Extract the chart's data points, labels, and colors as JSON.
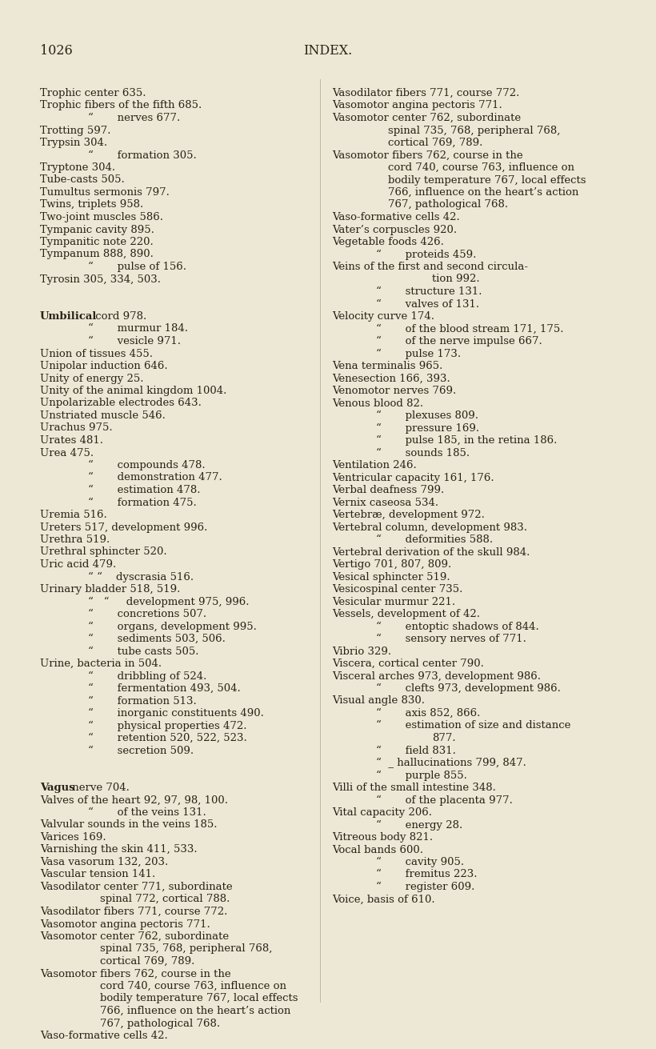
{
  "background_color": "#ede8d5",
  "page_number": "1026",
  "header": "INDEX.",
  "text_color": "#2a2218",
  "font_size": 9.5,
  "header_font_size": 11.5,
  "page_num_font_size": 11.5,
  "left_lines": [
    {
      "text": "Trophic center 635.",
      "indent": 0,
      "bold_prefix": ""
    },
    {
      "text": "Trophic fibers of the fifth 685.",
      "indent": 0,
      "bold_prefix": ""
    },
    {
      "text": "“       nerves 677.",
      "indent": 1,
      "bold_prefix": ""
    },
    {
      "text": "Trotting 597.",
      "indent": 0,
      "bold_prefix": ""
    },
    {
      "text": "Trypsin 304.",
      "indent": 0,
      "bold_prefix": ""
    },
    {
      "text": "“       formation 305.",
      "indent": 1,
      "bold_prefix": ""
    },
    {
      "text": "Tryptone 304.",
      "indent": 0,
      "bold_prefix": ""
    },
    {
      "text": "Tube-casts 505.",
      "indent": 0,
      "bold_prefix": ""
    },
    {
      "text": "Tumultus sermonis 797.",
      "indent": 0,
      "bold_prefix": ""
    },
    {
      "text": "Twins, triplets 958.",
      "indent": 0,
      "bold_prefix": ""
    },
    {
      "text": "Two-joint muscles 586.",
      "indent": 0,
      "bold_prefix": ""
    },
    {
      "text": "Tympanic cavity 895.",
      "indent": 0,
      "bold_prefix": ""
    },
    {
      "text": "Tympanitic note 220.",
      "indent": 0,
      "bold_prefix": ""
    },
    {
      "text": "Tympanum 888, 890.",
      "indent": 0,
      "bold_prefix": ""
    },
    {
      "text": "“       pulse of 156.",
      "indent": 1,
      "bold_prefix": ""
    },
    {
      "text": "Tyrosin 305, 334, 503.",
      "indent": 0,
      "bold_prefix": ""
    },
    {
      "text": "",
      "indent": 0,
      "bold_prefix": ""
    },
    {
      "text": "",
      "indent": 0,
      "bold_prefix": ""
    },
    {
      "text": "cord 978.",
      "indent": 0,
      "bold_prefix": "Umbilical"
    },
    {
      "text": "“       murmur 184.",
      "indent": 1,
      "bold_prefix": ""
    },
    {
      "text": "“       vesicle 971.",
      "indent": 1,
      "bold_prefix": ""
    },
    {
      "text": "Union of tissues 455.",
      "indent": 0,
      "bold_prefix": ""
    },
    {
      "text": "Unipolar induction 646.",
      "indent": 0,
      "bold_prefix": ""
    },
    {
      "text": "Unity of energy 25.",
      "indent": 0,
      "bold_prefix": ""
    },
    {
      "text": "Unity of the animal kingdom 1004.",
      "indent": 0,
      "bold_prefix": ""
    },
    {
      "text": "Unpolarizable electrodes 643.",
      "indent": 0,
      "bold_prefix": ""
    },
    {
      "text": "Unstriated muscle 546.",
      "indent": 0,
      "bold_prefix": ""
    },
    {
      "text": "Urachus 975.",
      "indent": 0,
      "bold_prefix": ""
    },
    {
      "text": "Urates 481.",
      "indent": 0,
      "bold_prefix": ""
    },
    {
      "text": "Urea 475.",
      "indent": 0,
      "bold_prefix": ""
    },
    {
      "text": "“       compounds 478.",
      "indent": 1,
      "bold_prefix": ""
    },
    {
      "text": "“       demonstration 477.",
      "indent": 1,
      "bold_prefix": ""
    },
    {
      "text": "“       estimation 478.",
      "indent": 1,
      "bold_prefix": ""
    },
    {
      "text": "“       formation 475.",
      "indent": 1,
      "bold_prefix": ""
    },
    {
      "text": "Uremia 516.",
      "indent": 0,
      "bold_prefix": ""
    },
    {
      "text": "Ureters 517, development 996.",
      "indent": 0,
      "bold_prefix": ""
    },
    {
      "text": "Urethra 519.",
      "indent": 0,
      "bold_prefix": ""
    },
    {
      "text": "Urethral sphincter 520.",
      "indent": 0,
      "bold_prefix": ""
    },
    {
      "text": "Uric acid 479.",
      "indent": 0,
      "bold_prefix": ""
    },
    {
      "text": "“ “    dyscrasia 516.",
      "indent": 1,
      "bold_prefix": ""
    },
    {
      "text": "Urinary bladder 518, 519.",
      "indent": 0,
      "bold_prefix": ""
    },
    {
      "text": "“   “     development 975, 996.",
      "indent": 1,
      "bold_prefix": ""
    },
    {
      "text": "“       concretions 507.",
      "indent": 1,
      "bold_prefix": ""
    },
    {
      "text": "“       organs, development 995.",
      "indent": 1,
      "bold_prefix": ""
    },
    {
      "text": "“       sediments 503, 506.",
      "indent": 1,
      "bold_prefix": ""
    },
    {
      "text": "“       tube casts 505.",
      "indent": 1,
      "bold_prefix": ""
    },
    {
      "text": "Urine, bacteria in 504.",
      "indent": 0,
      "bold_prefix": ""
    },
    {
      "text": "“       dribbling of 524.",
      "indent": 1,
      "bold_prefix": ""
    },
    {
      "text": "“       fermentation 493, 504.",
      "indent": 1,
      "bold_prefix": ""
    },
    {
      "text": "“       formation 513.",
      "indent": 1,
      "bold_prefix": ""
    },
    {
      "text": "“       inorganic constituents 490.",
      "indent": 1,
      "bold_prefix": ""
    },
    {
      "text": "“       physical properties 472.",
      "indent": 1,
      "bold_prefix": ""
    },
    {
      "text": "“       retention 520, 522, 523.",
      "indent": 1,
      "bold_prefix": ""
    },
    {
      "text": "“       secretion 509.",
      "indent": 1,
      "bold_prefix": ""
    },
    {
      "text": "",
      "indent": 0,
      "bold_prefix": ""
    },
    {
      "text": "",
      "indent": 0,
      "bold_prefix": ""
    },
    {
      "text": "nerve 704.",
      "indent": 0,
      "bold_prefix": "Vagus"
    },
    {
      "text": "Valves of the heart 92, 97, 98, 100.",
      "indent": 0,
      "bold_prefix": ""
    },
    {
      "text": "“       of the veins 131.",
      "indent": 1,
      "bold_prefix": ""
    },
    {
      "text": "Valvular sounds in the veins 185.",
      "indent": 0,
      "bold_prefix": ""
    },
    {
      "text": "Varices 169.",
      "indent": 0,
      "bold_prefix": ""
    },
    {
      "text": "Varnishing the skin 411, 533.",
      "indent": 0,
      "bold_prefix": ""
    },
    {
      "text": "Vasa vasorum 132, 203.",
      "indent": 0,
      "bold_prefix": ""
    },
    {
      "text": "Vascular tension 141.",
      "indent": 0,
      "bold_prefix": ""
    },
    {
      "text": "Vasodilator center 771, subordinate",
      "indent": 0,
      "bold_prefix": ""
    },
    {
      "text": "spinal 772, cortical 788.",
      "indent": 2,
      "bold_prefix": ""
    },
    {
      "text": "Vasodilator fibers 771, course 772.",
      "indent": 0,
      "bold_prefix": ""
    },
    {
      "text": "Vasomotor angina pectoris 771.",
      "indent": 0,
      "bold_prefix": ""
    },
    {
      "text": "Vasomotor center 762, subordinate",
      "indent": 0,
      "bold_prefix": ""
    },
    {
      "text": "spinal 735, 768, peripheral 768,",
      "indent": 2,
      "bold_prefix": ""
    },
    {
      "text": "cortical 769, 789.",
      "indent": 2,
      "bold_prefix": ""
    },
    {
      "text": "Vasomotor fibers 762, course in the",
      "indent": 0,
      "bold_prefix": ""
    },
    {
      "text": "cord 740, course 763, influence on",
      "indent": 2,
      "bold_prefix": ""
    },
    {
      "text": "bodily temperature 767, local effects",
      "indent": 2,
      "bold_prefix": ""
    },
    {
      "text": "766, influence on the heart’s action",
      "indent": 2,
      "bold_prefix": ""
    },
    {
      "text": "767, pathological 768.",
      "indent": 2,
      "bold_prefix": ""
    },
    {
      "text": "Vaso-formative cells 42.",
      "indent": 0,
      "bold_prefix": ""
    }
  ],
  "right_lines": [
    {
      "text": "Vasodilator fibers 771, course 772.",
      "indent": 0,
      "bold_prefix": ""
    },
    {
      "text": "Vasomotor angina pectoris 771.",
      "indent": 0,
      "bold_prefix": ""
    },
    {
      "text": "Vasomotor center 762, subordinate",
      "indent": 0,
      "bold_prefix": ""
    },
    {
      "text": "spinal 735, 768, peripheral 768,",
      "indent": 2,
      "bold_prefix": ""
    },
    {
      "text": "cortical 769, 789.",
      "indent": 2,
      "bold_prefix": ""
    },
    {
      "text": "Vasomotor fibers 762, course in the",
      "indent": 0,
      "bold_prefix": ""
    },
    {
      "text": "cord 740, course 763, influence on",
      "indent": 2,
      "bold_prefix": ""
    },
    {
      "text": "bodily temperature 767, local effects",
      "indent": 2,
      "bold_prefix": ""
    },
    {
      "text": "766, influence on the heart’s action",
      "indent": 2,
      "bold_prefix": ""
    },
    {
      "text": "767, pathological 768.",
      "indent": 2,
      "bold_prefix": ""
    },
    {
      "text": "Vaso-formative cells 42.",
      "indent": 0,
      "bold_prefix": ""
    },
    {
      "text": "Vater’s corpuscles 920.",
      "indent": 0,
      "bold_prefix": ""
    },
    {
      "text": "Vegetable foods 426.",
      "indent": 0,
      "bold_prefix": ""
    },
    {
      "text": "“       proteids 459.",
      "indent": 1,
      "bold_prefix": ""
    },
    {
      "text": "Veins of the first and second circula-",
      "indent": 0,
      "bold_prefix": ""
    },
    {
      "text": "tion 992.",
      "indent": 3,
      "bold_prefix": ""
    },
    {
      "text": "“       structure 131.",
      "indent": 1,
      "bold_prefix": ""
    },
    {
      "text": "“       valves of 131.",
      "indent": 1,
      "bold_prefix": ""
    },
    {
      "text": "Velocity curve 174.",
      "indent": 0,
      "bold_prefix": ""
    },
    {
      "text": "“       of the blood stream 171, 175.",
      "indent": 1,
      "bold_prefix": ""
    },
    {
      "text": "“       of the nerve impulse 667.",
      "indent": 1,
      "bold_prefix": ""
    },
    {
      "text": "“       pulse 173.",
      "indent": 1,
      "bold_prefix": ""
    },
    {
      "text": "Vena terminalis 965.",
      "indent": 0,
      "bold_prefix": ""
    },
    {
      "text": "Venesection 166, 393.",
      "indent": 0,
      "bold_prefix": ""
    },
    {
      "text": "Venomotor nerves 769.",
      "indent": 0,
      "bold_prefix": ""
    },
    {
      "text": "Venous blood 82.",
      "indent": 0,
      "bold_prefix": ""
    },
    {
      "text": "“       plexuses 809.",
      "indent": 1,
      "bold_prefix": ""
    },
    {
      "text": "“       pressure 169.",
      "indent": 1,
      "bold_prefix": ""
    },
    {
      "text": "“       pulse 185, in the retina 186.",
      "indent": 1,
      "bold_prefix": ""
    },
    {
      "text": "“       sounds 185.",
      "indent": 1,
      "bold_prefix": ""
    },
    {
      "text": "Ventilation 246.",
      "indent": 0,
      "bold_prefix": ""
    },
    {
      "text": "Ventricular capacity 161, 176.",
      "indent": 0,
      "bold_prefix": ""
    },
    {
      "text": "Verbal deafness 799.",
      "indent": 0,
      "bold_prefix": ""
    },
    {
      "text": "Vernix caseosa 534.",
      "indent": 0,
      "bold_prefix": ""
    },
    {
      "text": "Vertebræ, development 972.",
      "indent": 0,
      "bold_prefix": ""
    },
    {
      "text": "Vertebral column, development 983.",
      "indent": 0,
      "bold_prefix": ""
    },
    {
      "text": "“       deformities 588.",
      "indent": 1,
      "bold_prefix": ""
    },
    {
      "text": "Vertebral derivation of the skull 984.",
      "indent": 0,
      "bold_prefix": ""
    },
    {
      "text": "Vertigo 701, 807, 809.",
      "indent": 0,
      "bold_prefix": ""
    },
    {
      "text": "Vesical sphincter 519.",
      "indent": 0,
      "bold_prefix": ""
    },
    {
      "text": "Vesicospinal center 735.",
      "indent": 0,
      "bold_prefix": ""
    },
    {
      "text": "Vesicular murmur 221.",
      "indent": 0,
      "bold_prefix": ""
    },
    {
      "text": "Vessels, development of 42.",
      "indent": 0,
      "bold_prefix": ""
    },
    {
      "text": "“       entoptic shadows of 844.",
      "indent": 1,
      "bold_prefix": ""
    },
    {
      "text": "“       sensory nerves of 771.",
      "indent": 1,
      "bold_prefix": ""
    },
    {
      "text": "Vibrio 329.",
      "indent": 0,
      "bold_prefix": ""
    },
    {
      "text": "Viscera, cortical center 790.",
      "indent": 0,
      "bold_prefix": ""
    },
    {
      "text": "Visceral arches 973, development 986.",
      "indent": 0,
      "bold_prefix": ""
    },
    {
      "text": "“       clefts 973, development 986.",
      "indent": 1,
      "bold_prefix": ""
    },
    {
      "text": "Visual angle 830.",
      "indent": 0,
      "bold_prefix": ""
    },
    {
      "text": "“       axis 852, 866.",
      "indent": 1,
      "bold_prefix": ""
    },
    {
      "text": "“       estimation of size and distance",
      "indent": 1,
      "bold_prefix": ""
    },
    {
      "text": "877.",
      "indent": 3,
      "bold_prefix": ""
    },
    {
      "text": "“       field 831.",
      "indent": 1,
      "bold_prefix": ""
    },
    {
      "text": "“  _ hallucinations 799, 847.",
      "indent": 1,
      "bold_prefix": ""
    },
    {
      "text": "“       purple 855.",
      "indent": 1,
      "bold_prefix": ""
    },
    {
      "text": "Villi of the small intestine 348.",
      "indent": 0,
      "bold_prefix": ""
    },
    {
      "text": "“       of the placenta 977.",
      "indent": 1,
      "bold_prefix": ""
    },
    {
      "text": "Vital capacity 206.",
      "indent": 0,
      "bold_prefix": ""
    },
    {
      "text": "“       energy 28.",
      "indent": 1,
      "bold_prefix": ""
    },
    {
      "text": "Vitreous body 821.",
      "indent": 0,
      "bold_prefix": ""
    },
    {
      "text": "Vocal bands 600.",
      "indent": 0,
      "bold_prefix": ""
    },
    {
      "text": "“       cavity 905.",
      "indent": 1,
      "bold_prefix": ""
    },
    {
      "text": "“       fremitus 223.",
      "indent": 1,
      "bold_prefix": ""
    },
    {
      "text": "“       register 609.",
      "indent": 1,
      "bold_prefix": ""
    },
    {
      "text": "Voice, basis of 610.",
      "indent": 0,
      "bold_prefix": ""
    }
  ]
}
